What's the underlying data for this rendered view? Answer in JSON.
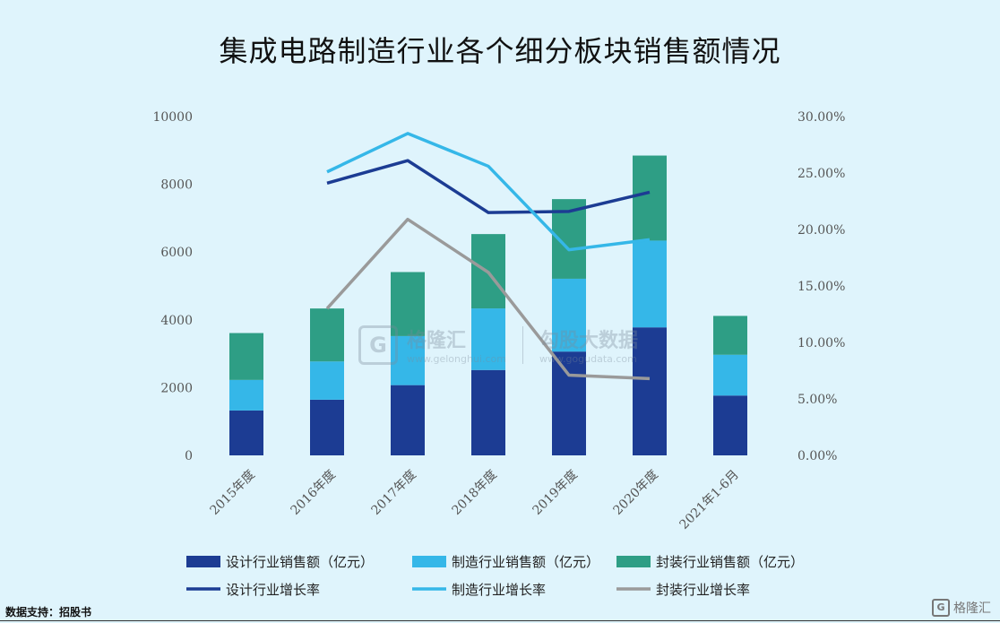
{
  "chart_data": {
    "type": "bar",
    "title": "集成电路制造行业各个细分板块销售额情况",
    "categories": [
      "2015年度",
      "2016年度",
      "2017年度",
      "2018年度",
      "2019年度",
      "2020年度",
      "2021年1-6月"
    ],
    "ylim": [
      0,
      10000
    ],
    "y_ticks": [
      "0",
      "2000",
      "4000",
      "6000",
      "8000",
      "10000"
    ],
    "y2lim": [
      0,
      0.3
    ],
    "y2_ticks": [
      "0.00%",
      "5.00%",
      "10.00%",
      "15.00%",
      "20.00%",
      "25.00%",
      "30.00%"
    ],
    "bar_series": [
      {
        "name": "设计行业销售额（亿元）",
        "color": "#1c3c93",
        "values": [
          1325,
          1644,
          2073,
          2519,
          3064,
          3778,
          1766
        ]
      },
      {
        "name": "制造行业销售额（亿元）",
        "color": "#35b7e8",
        "values": [
          901,
          1127,
          1448,
          1818,
          2149,
          2560,
          1203
        ]
      },
      {
        "name": "封装行业销售额（亿元）",
        "color": "#2e9e85",
        "values": [
          1384,
          1564,
          1889,
          2194,
          2350,
          2510,
          1147
        ]
      }
    ],
    "line_series": [
      {
        "name": "设计行业增长率",
        "color": "#1c3c93",
        "values": [
          null,
          0.241,
          0.261,
          0.215,
          0.216,
          0.233,
          null
        ]
      },
      {
        "name": "制造行业增长率",
        "color": "#35b7e8",
        "values": [
          null,
          0.251,
          0.285,
          0.256,
          0.182,
          0.191,
          null
        ]
      },
      {
        "name": "封装行业增长率",
        "color": "#9a9a9a",
        "values": [
          null,
          0.13,
          0.209,
          0.162,
          0.071,
          0.068,
          null
        ]
      }
    ],
    "legend_position": "bottom",
    "grid": false
  },
  "source": "数据支持：招股书",
  "watermark": {
    "logo_letter": "G",
    "name1": "格隆汇",
    "url1": "www.gelonghui.com",
    "name2": "勾股大数据",
    "url2": "www.gogudata.com"
  },
  "brand": {
    "mark": "G",
    "name": "格隆汇"
  }
}
